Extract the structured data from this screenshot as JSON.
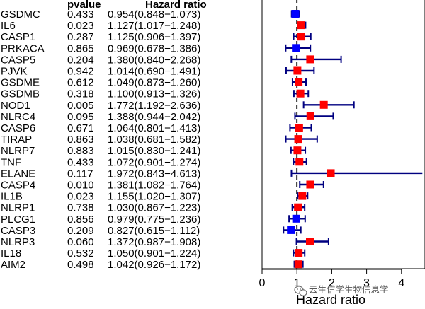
{
  "chart_data": {
    "type": "forest",
    "headers": {
      "pvalue": "pvalue",
      "hazard_ratio": "Hazard ratio"
    },
    "xlabel": "Hazard ratio",
    "xlim": [
      0,
      4.6
    ],
    "xticks": [
      "0",
      "1",
      "2",
      "3",
      "4"
    ],
    "reference_line": 1,
    "colors": {
      "hr_above_1": "#ff0000",
      "hr_below_1": "#0000ff",
      "ci_line": "#000080"
    },
    "rows": [
      {
        "gene": "GSDMC",
        "pvalue": "0.433",
        "hr_text": "0.954(0.848−1.073)",
        "hr": 0.954,
        "lower": 0.848,
        "upper": 1.073
      },
      {
        "gene": "IL6",
        "pvalue": "0.023",
        "hr_text": "1.127(1.017−1.248)",
        "hr": 1.127,
        "lower": 1.017,
        "upper": 1.248
      },
      {
        "gene": "CASP1",
        "pvalue": "0.287",
        "hr_text": "1.125(0.906−1.397)",
        "hr": 1.125,
        "lower": 0.906,
        "upper": 1.397
      },
      {
        "gene": "PRKACA",
        "pvalue": "0.865",
        "hr_text": "0.969(0.678−1.386)",
        "hr": 0.969,
        "lower": 0.678,
        "upper": 1.386
      },
      {
        "gene": "CASP5",
        "pvalue": "0.204",
        "hr_text": "1.380(0.840−2.268)",
        "hr": 1.38,
        "lower": 0.84,
        "upper": 2.268
      },
      {
        "gene": "PJVK",
        "pvalue": "0.942",
        "hr_text": "1.014(0.690−1.491)",
        "hr": 1.014,
        "lower": 0.69,
        "upper": 1.491
      },
      {
        "gene": "GSDME",
        "pvalue": "0.612",
        "hr_text": "1.049(0.873−1.260)",
        "hr": 1.049,
        "lower": 0.873,
        "upper": 1.26
      },
      {
        "gene": "GSDMB",
        "pvalue": "0.318",
        "hr_text": "1.100(0.913−1.326)",
        "hr": 1.1,
        "lower": 0.913,
        "upper": 1.326
      },
      {
        "gene": "NOD1",
        "pvalue": "0.005",
        "hr_text": "1.772(1.192−2.636)",
        "hr": 1.772,
        "lower": 1.192,
        "upper": 2.636
      },
      {
        "gene": "NLRC4",
        "pvalue": "0.095",
        "hr_text": "1.388(0.944−2.042)",
        "hr": 1.388,
        "lower": 0.944,
        "upper": 2.042
      },
      {
        "gene": "CASP6",
        "pvalue": "0.671",
        "hr_text": "1.064(0.801−1.413)",
        "hr": 1.064,
        "lower": 0.801,
        "upper": 1.413
      },
      {
        "gene": "TIRAP",
        "pvalue": "0.863",
        "hr_text": "1.038(0.681−1.582)",
        "hr": 1.038,
        "lower": 0.681,
        "upper": 1.582
      },
      {
        "gene": "NLRP7",
        "pvalue": "0.883",
        "hr_text": "1.015(0.830−1.241)",
        "hr": 1.015,
        "lower": 0.83,
        "upper": 1.241
      },
      {
        "gene": "TNF",
        "pvalue": "0.433",
        "hr_text": "1.072(0.901−1.274)",
        "hr": 1.072,
        "lower": 0.901,
        "upper": 1.274
      },
      {
        "gene": "ELANE",
        "pvalue": "0.117",
        "hr_text": "1.972(0.843−4.613)",
        "hr": 1.972,
        "lower": 0.843,
        "upper": 4.613
      },
      {
        "gene": "CASP4",
        "pvalue": "0.010",
        "hr_text": "1.381(1.082−1.764)",
        "hr": 1.381,
        "lower": 1.082,
        "upper": 1.764
      },
      {
        "gene": "IL1B",
        "pvalue": "0.023",
        "hr_text": "1.155(1.020−1.307)",
        "hr": 1.155,
        "lower": 1.02,
        "upper": 1.307
      },
      {
        "gene": "NLRP1",
        "pvalue": "0.738",
        "hr_text": "1.030(0.867−1.223)",
        "hr": 1.03,
        "lower": 0.867,
        "upper": 1.223
      },
      {
        "gene": "PLCG1",
        "pvalue": "0.856",
        "hr_text": "0.979(0.775−1.236)",
        "hr": 0.979,
        "lower": 0.775,
        "upper": 1.236
      },
      {
        "gene": "CASP3",
        "pvalue": "0.209",
        "hr_text": "0.827(0.615−1.112)",
        "hr": 0.827,
        "lower": 0.615,
        "upper": 1.112
      },
      {
        "gene": "NLRP3",
        "pvalue": "0.060",
        "hr_text": "1.372(0.987−1.908)",
        "hr": 1.372,
        "lower": 0.987,
        "upper": 1.908
      },
      {
        "gene": "IL18",
        "pvalue": "0.532",
        "hr_text": "1.050(0.901−1.224)",
        "hr": 1.05,
        "lower": 0.901,
        "upper": 1.224
      },
      {
        "gene": "AIM2",
        "pvalue": "0.498",
        "hr_text": "1.042(0.926−1.172)",
        "hr": 1.042,
        "lower": 0.926,
        "upper": 1.172
      }
    ]
  },
  "watermark": {
    "text": "云生信学生物信息学",
    "icon": "wechat-icon"
  }
}
